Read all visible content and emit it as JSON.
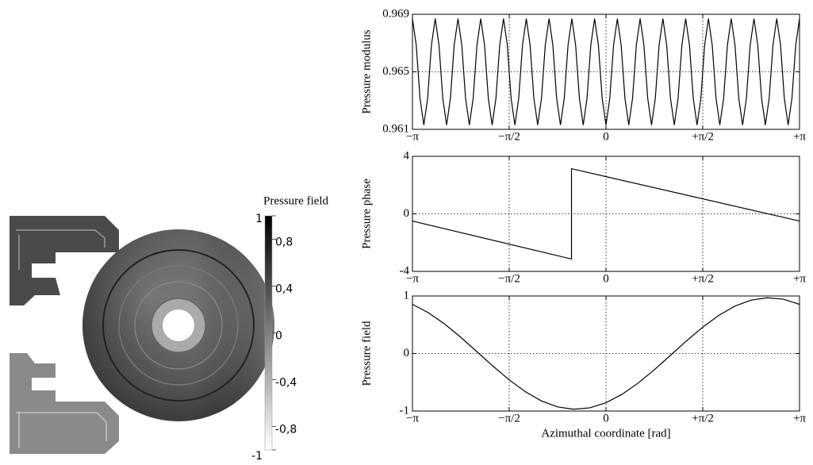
{
  "chart_data": [
    {
      "type": "line",
      "ylabel": "Pressure modulus",
      "x": [
        -3.1416,
        -3.08,
        -3.0184,
        -2.9568,
        -2.8952,
        -2.8336,
        -2.772,
        -2.7104,
        -2.6488,
        -2.5872,
        -2.5256,
        -2.464,
        -2.4024,
        -2.3408,
        -2.2792,
        -2.2176,
        -2.156,
        -2.0944,
        -2.0328,
        -1.9712,
        -1.9096,
        -1.848,
        -1.7864,
        -1.7248,
        -1.6632,
        -1.6016,
        -1.54,
        -1.4784,
        -1.4168,
        -1.3552,
        -1.2936,
        -1.232,
        -1.1704,
        -1.1088,
        -1.0472,
        -0.9856,
        -0.924,
        -0.8624,
        -0.8008,
        -0.7392,
        -0.6776,
        -0.616,
        -0.5544,
        -0.4928,
        -0.4312,
        -0.3696,
        -0.308,
        -0.2464,
        -0.1848,
        -0.1232,
        -0.0616,
        0,
        0.0616,
        0.1232,
        0.1848,
        0.2464,
        0.308,
        0.3696,
        0.4312,
        0.4928,
        0.5544,
        0.616,
        0.6776,
        0.7392,
        0.8008,
        0.8624,
        0.924,
        0.9856,
        1.0472,
        1.1088,
        1.1704,
        1.232,
        1.2936,
        1.3552,
        1.4168,
        1.4784,
        1.54,
        1.6016,
        1.6632,
        1.7248,
        1.7864,
        1.848,
        1.9096,
        1.9712,
        2.0328,
        2.0944,
        2.156,
        2.2176,
        2.2792,
        2.3408,
        2.4024,
        2.464,
        2.5256,
        2.5872,
        2.6488,
        2.7104,
        2.772,
        2.8336,
        2.8952,
        2.9568,
        3.0184,
        3.08,
        3.1416
      ],
      "series": [
        {
          "color": "#000000",
          "values": [
            0.9687,
            0.96685,
            0.96315,
            0.9613,
            0.96315,
            0.96685,
            0.9687,
            0.96685,
            0.96315,
            0.9613,
            0.96315,
            0.96685,
            0.9687,
            0.96685,
            0.96315,
            0.9613,
            0.96315,
            0.96685,
            0.9687,
            0.96685,
            0.96315,
            0.9613,
            0.96315,
            0.96685,
            0.9687,
            0.96685,
            0.96315,
            0.9613,
            0.96315,
            0.96685,
            0.9687,
            0.96685,
            0.96315,
            0.9613,
            0.96315,
            0.96685,
            0.9687,
            0.96685,
            0.96315,
            0.9613,
            0.96315,
            0.96685,
            0.9687,
            0.96685,
            0.96315,
            0.9613,
            0.96315,
            0.96685,
            0.9687,
            0.96685,
            0.96315,
            0.9613,
            0.96315,
            0.96685,
            0.9687,
            0.96685,
            0.96315,
            0.9613,
            0.96315,
            0.96685,
            0.9687,
            0.96685,
            0.96315,
            0.9613,
            0.96315,
            0.96685,
            0.9687,
            0.96685,
            0.96315,
            0.9613,
            0.96315,
            0.96685,
            0.9687,
            0.96685,
            0.96315,
            0.9613,
            0.96315,
            0.96685,
            0.9687,
            0.96685,
            0.96315,
            0.9613,
            0.96315,
            0.96685,
            0.9687,
            0.96685,
            0.96315,
            0.9613,
            0.96315,
            0.96685,
            0.9687,
            0.96685,
            0.96315,
            0.9613,
            0.96315,
            0.96685,
            0.9687,
            0.96685,
            0.96315,
            0.9613,
            0.96315,
            0.96685,
            0.9687
          ]
        }
      ],
      "xlim": [
        -3.1416,
        3.1416
      ],
      "xticks": [
        {
          "value": -3.1416,
          "label": "−π"
        },
        {
          "value": -1.5708,
          "label": "−π/2"
        },
        0,
        {
          "value": 1.5708,
          "label": "+π/2"
        },
        {
          "value": 3.1416,
          "label": "+π"
        }
      ],
      "ylim": [
        0.961,
        0.969
      ],
      "yticks": [
        0.961,
        0.965,
        0.969
      ],
      "grid": true
    },
    {
      "type": "line",
      "ylabel": "Pressure phase",
      "x": [
        -3.1416,
        -0.56,
        -0.56,
        3.1416
      ],
      "series": [
        {
          "color": "#000000",
          "values": [
            -0.5,
            -3.14,
            3.14,
            -0.5
          ]
        }
      ],
      "xlim": [
        -3.1416,
        3.1416
      ],
      "xticks": [
        {
          "value": -3.1416,
          "label": "−π"
        },
        {
          "value": -1.5708,
          "label": "−π/2"
        },
        0,
        {
          "value": 1.5708,
          "label": "+π/2"
        },
        {
          "value": 3.1416,
          "label": "+π"
        }
      ],
      "ylim": [
        -4,
        4
      ],
      "yticks": [
        -4,
        0,
        4
      ],
      "grid": true
    },
    {
      "type": "line",
      "ylabel": "Pressure field",
      "xlabel": "Azimuthal coordinate [rad]",
      "x": [
        -3.1416,
        -2.8798,
        -2.618,
        -2.3562,
        -2.0944,
        -1.8326,
        -1.5708,
        -1.309,
        -1.0472,
        -0.7854,
        -0.5236,
        -0.2618,
        0,
        0.2618,
        0.5236,
        0.7854,
        1.0472,
        1.309,
        1.5708,
        1.8326,
        2.0944,
        2.3562,
        2.618,
        2.8798,
        3.1416
      ],
      "series": [
        {
          "color": "#000000",
          "values": [
            0.855,
            0.707,
            0.512,
            0.281,
            0.031,
            -0.221,
            -0.458,
            -0.664,
            -0.825,
            -0.929,
            -0.969,
            -0.944,
            -0.856,
            -0.708,
            -0.513,
            -0.282,
            -0.031,
            0.221,
            0.458,
            0.664,
            0.825,
            0.929,
            0.969,
            0.944,
            0.855
          ]
        }
      ],
      "xlim": [
        -3.1416,
        3.1416
      ],
      "xticks": [
        {
          "value": -3.1416,
          "label": "−π"
        },
        {
          "value": -1.5708,
          "label": "−π/2"
        },
        0,
        {
          "value": 1.5708,
          "label": "+π/2"
        },
        {
          "value": 3.1416,
          "label": "+π"
        }
      ],
      "ylim": [
        -1,
        1
      ],
      "yticks": [
        -1,
        0,
        1
      ],
      "grid": true
    },
    {
      "type": "colorbar",
      "title": "Pressure field",
      "ylim": [
        -1,
        1
      ],
      "yticks": [
        1,
        {
          "value": 0.8,
          "label": "0,8"
        },
        {
          "value": 0.4,
          "label": "0,4"
        },
        0,
        {
          "value": -0.4,
          "label": "-0,4"
        },
        {
          "value": -0.8,
          "label": "-0,8"
        },
        -1
      ]
    }
  ]
}
